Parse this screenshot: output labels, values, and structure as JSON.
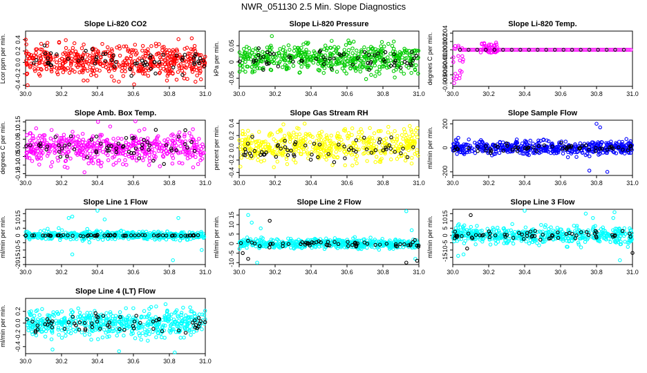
{
  "title": "NWR_051130  2.5 Min. Slope Diagnostics",
  "colors": {
    "red": "#ff0000",
    "green": "#00cc00",
    "magenta": "#ff00ff",
    "yellow": "#ffff00",
    "blue": "#0000ff",
    "cyan": "#00ffff",
    "black": "#000000"
  },
  "chart_data": [
    {
      "type": "scatter",
      "title": "Slope Li-820 CO2",
      "ylabel": "Lcor ppm per min.",
      "xlim": [
        30.0,
        31.0
      ],
      "ylim": [
        -0.42,
        0.55
      ],
      "yticks": [
        -0.4,
        -0.2,
        0.0,
        0.2,
        0.4
      ],
      "ytick_labels": [
        "-0.4",
        "-0.2",
        "0.0",
        "0.2",
        "0.4"
      ],
      "xticks": [
        30.0,
        30.2,
        30.4,
        30.6,
        30.8,
        31.0
      ],
      "xtick_labels": [
        "30.0",
        "30.2",
        "30.4",
        "30.6",
        "30.8",
        "31.0"
      ],
      "series": [
        {
          "color": "red",
          "n": 520,
          "center": 0.02,
          "spread": 0.14,
          "outliers": []
        },
        {
          "color": "black",
          "n": 60,
          "center": 0.02,
          "spread": 0.09,
          "outliers": []
        }
      ]
    },
    {
      "type": "scatter",
      "title": "Slope Li-820 Pressure",
      "ylabel": "kPa per min.",
      "xlim": [
        30.0,
        31.0
      ],
      "ylim": [
        -0.075,
        0.095
      ],
      "yticks": [
        -0.05,
        0.0,
        0.05
      ],
      "ytick_labels": [
        "-0.05",
        "0",
        "0.05"
      ],
      "xticks": [
        30.0,
        30.2,
        30.4,
        30.6,
        30.8,
        31.0
      ],
      "xtick_labels": [
        "30.0",
        "30.2",
        "30.4",
        "30.6",
        "30.8",
        "31.0"
      ],
      "series": [
        {
          "color": "green",
          "n": 520,
          "center": 0.01,
          "spread": 0.022,
          "outliers": []
        },
        {
          "color": "black",
          "n": 60,
          "center": 0.008,
          "spread": 0.016,
          "outliers": []
        }
      ]
    },
    {
      "type": "scatter",
      "title": "Slope Li-820 Temp.",
      "ylabel": "degrees C per min.",
      "xlim": [
        30.0,
        31.0
      ],
      "ylim": [
        -0.0088,
        0.0045
      ],
      "yticks": [
        -0.008,
        -0.006,
        -0.004,
        -0.002,
        0.0,
        0.002,
        0.004
      ],
      "ytick_labels": [
        "-0.008",
        "-0.006",
        "-0.004",
        "-0.002",
        "0.000",
        "0.002",
        "0.004"
      ],
      "xticks": [
        30.0,
        30.2,
        30.4,
        30.6,
        30.8,
        31.0
      ],
      "xtick_labels": [
        "30.0",
        "30.2",
        "30.4",
        "30.6",
        "30.8",
        "31.0"
      ],
      "series": [
        {
          "color": "magenta",
          "n": 120,
          "center": 0.0,
          "spread": 0.0,
          "outliers": []
        },
        {
          "color": "black",
          "n": 20,
          "center": 0.0,
          "spread": 0.0,
          "outliers": []
        }
      ]
    },
    {
      "type": "scatter",
      "title": "Slope Amb. Box Temp.",
      "ylabel": "degrees C per min.",
      "xlim": [
        30.0,
        31.0
      ],
      "ylim": [
        -0.16,
        0.16
      ],
      "yticks": [
        -0.15,
        -0.1,
        -0.05,
        0.0,
        0.05,
        0.1,
        0.15
      ],
      "ytick_labels": [
        "-0.15",
        "-0.10",
        "-0.05",
        "0.00",
        "0.05",
        "0.10",
        "0.15"
      ],
      "xticks": [
        30.0,
        30.2,
        30.4,
        30.6,
        30.8,
        31.0
      ],
      "xtick_labels": [
        "30.0",
        "30.2",
        "30.4",
        "30.6",
        "30.8",
        "31.0"
      ],
      "series": [
        {
          "color": "magenta",
          "n": 520,
          "center": 0.0,
          "spread": 0.045,
          "outliers": []
        },
        {
          "color": "black",
          "n": 60,
          "center": 0.0,
          "spread": 0.035,
          "outliers": []
        }
      ]
    },
    {
      "type": "scatter",
      "title": "Slope Gas Stream RH",
      "ylabel": "percent per min.",
      "xlim": [
        30.0,
        31.0
      ],
      "ylim": [
        -0.45,
        0.45
      ],
      "yticks": [
        -0.4,
        -0.2,
        0.0,
        0.2,
        0.4
      ],
      "ytick_labels": [
        "-0.4",
        "-0.2",
        "0.0",
        "0.2",
        "0.4"
      ],
      "xticks": [
        30.0,
        30.2,
        30.4,
        30.6,
        30.8,
        31.0
      ],
      "xtick_labels": [
        "30.0",
        "30.2",
        "30.4",
        "30.6",
        "30.8",
        "31.0"
      ],
      "series": [
        {
          "color": "yellow",
          "n": 500,
          "center": 0.03,
          "spread": 0.13,
          "outliers": []
        },
        {
          "color": "black",
          "n": 60,
          "center": 0.0,
          "spread": 0.1,
          "outliers": []
        }
      ]
    },
    {
      "type": "scatter",
      "title": "Slope Sample Flow",
      "ylabel": "ml/min per min.",
      "xlim": [
        30.0,
        31.0
      ],
      "ylim": [
        -230,
        230
      ],
      "yticks": [
        -200,
        0,
        200
      ],
      "ytick_labels": [
        "-200",
        "0",
        "200"
      ],
      "xticks": [
        30.0,
        30.2,
        30.4,
        30.6,
        30.8,
        31.0
      ],
      "xtick_labels": [
        "30.0",
        "30.2",
        "30.4",
        "30.6",
        "30.8",
        "31.0"
      ],
      "series": [
        {
          "color": "blue",
          "n": 500,
          "center": 0.0,
          "spread": 28,
          "outliers": [
            [
              30.8,
              200
            ],
            [
              30.82,
              170
            ],
            [
              30.76,
              -190
            ],
            [
              30.86,
              -200
            ]
          ]
        },
        {
          "color": "black",
          "n": 60,
          "center": 0.0,
          "spread": 15,
          "outliers": []
        }
      ]
    },
    {
      "type": "scatter",
      "title": "Slope Line 1 Flow",
      "ylabel": "ml/min per min.",
      "xlim": [
        30.0,
        31.0
      ],
      "ylim": [
        -20,
        18
      ],
      "yticks": [
        -20,
        -15,
        -10,
        -5,
        0,
        5,
        10,
        15
      ],
      "ytick_labels": [
        "-20",
        "-15",
        "-10",
        "-5",
        "0",
        "5",
        "10",
        "15"
      ],
      "xticks": [
        30.0,
        30.2,
        30.4,
        30.6,
        30.8,
        31.0
      ],
      "xtick_labels": [
        "30.0",
        "30.2",
        "30.4",
        "30.6",
        "30.8",
        "31.0"
      ],
      "series": [
        {
          "color": "cyan",
          "n": 500,
          "center": 0.0,
          "spread": 1.4,
          "outliers": [
            [
              30.24,
              12
            ],
            [
              30.26,
              13
            ],
            [
              30.4,
              17
            ],
            [
              30.44,
              11
            ],
            [
              30.26,
              -13
            ],
            [
              30.82,
              -17
            ],
            [
              30.85,
              12
            ],
            [
              30.98,
              -10
            ]
          ]
        },
        {
          "color": "black",
          "n": 60,
          "center": 0.0,
          "spread": 0.2,
          "outliers": []
        }
      ]
    },
    {
      "type": "scatter",
      "title": "Slope Line 2 Flow",
      "ylabel": "ml/min per min.",
      "xlim": [
        30.0,
        31.0
      ],
      "ylim": [
        -11,
        18
      ],
      "yticks": [
        -10,
        -5,
        0,
        5,
        10,
        15
      ],
      "ytick_labels": [
        "-10",
        "-5",
        "0",
        "5",
        "10",
        "15"
      ],
      "xticks": [
        30.0,
        30.2,
        30.4,
        30.6,
        30.8,
        31.0
      ],
      "xtick_labels": [
        "30.0",
        "30.2",
        "30.4",
        "30.6",
        "30.8",
        "31.0"
      ],
      "series": [
        {
          "color": "cyan",
          "n": 500,
          "center": 0.0,
          "spread": 1.2,
          "outliers": [
            [
              30.05,
              15
            ],
            [
              30.07,
              11
            ],
            [
              30.12,
              8
            ],
            [
              30.93,
              17
            ],
            [
              30.96,
              7
            ],
            [
              30.1,
              -10
            ],
            [
              30.98,
              -8
            ]
          ]
        },
        {
          "color": "black",
          "n": 60,
          "center": 0.0,
          "spread": 0.8,
          "outliers": [
            [
              30.17,
              12
            ],
            [
              30.02,
              -5
            ],
            [
              30.05,
              -8
            ],
            [
              30.99,
              -9
            ],
            [
              30.93,
              -10
            ]
          ]
        }
      ]
    },
    {
      "type": "scatter",
      "title": "Slope Line 3 Flow",
      "ylabel": "ml/min per min.",
      "xlim": [
        30.0,
        31.0
      ],
      "ylim": [
        -20,
        18
      ],
      "yticks": [
        -15,
        -10,
        -5,
        0,
        5,
        10,
        15
      ],
      "ytick_labels": [
        "-15",
        "-10",
        "-5",
        "0",
        "5",
        "10",
        "15"
      ],
      "xticks": [
        30.0,
        30.2,
        30.4,
        30.6,
        30.8,
        31.0
      ],
      "xtick_labels": [
        "30.0",
        "30.2",
        "30.4",
        "30.6",
        "30.8",
        "31.0"
      ],
      "series": [
        {
          "color": "cyan",
          "n": 500,
          "center": 0.0,
          "spread": 2.8,
          "outliers": [
            [
              30.4,
              17
            ],
            [
              30.74,
              15
            ],
            [
              30.78,
              12
            ],
            [
              30.03,
              -14
            ],
            [
              30.06,
              -13
            ],
            [
              30.93,
              -17
            ],
            [
              30.9,
              16
            ]
          ]
        },
        {
          "color": "black",
          "n": 60,
          "center": 0.0,
          "spread": 1.6,
          "outliers": [
            [
              30.1,
              14
            ],
            [
              30.08,
              -9
            ],
            [
              31.0,
              -12
            ]
          ]
        }
      ]
    },
    {
      "type": "scatter",
      "title": "Slope Line 4 (LT) Flow",
      "ylabel": "ml/min per min.",
      "xlim": [
        30.0,
        31.0
      ],
      "ylim": [
        -0.52,
        0.42
      ],
      "yticks": [
        -0.4,
        -0.2,
        0.0,
        0.2
      ],
      "ytick_labels": [
        "-0.4",
        "-0.2",
        "0.0",
        "0.2"
      ],
      "xticks": [
        30.0,
        30.2,
        30.4,
        30.6,
        30.8,
        31.0
      ],
      "xtick_labels": [
        "30.0",
        "30.2",
        "30.4",
        "30.6",
        "30.8",
        "31.0"
      ],
      "series": [
        {
          "color": "cyan",
          "n": 520,
          "center": 0.0,
          "spread": 0.11,
          "outliers": [
            [
              30.52,
              -0.48
            ],
            [
              30.83,
              -0.5
            ],
            [
              30.15,
              -0.45
            ]
          ]
        },
        {
          "color": "black",
          "n": 60,
          "center": 0.0,
          "spread": 0.09,
          "outliers": []
        }
      ]
    }
  ]
}
